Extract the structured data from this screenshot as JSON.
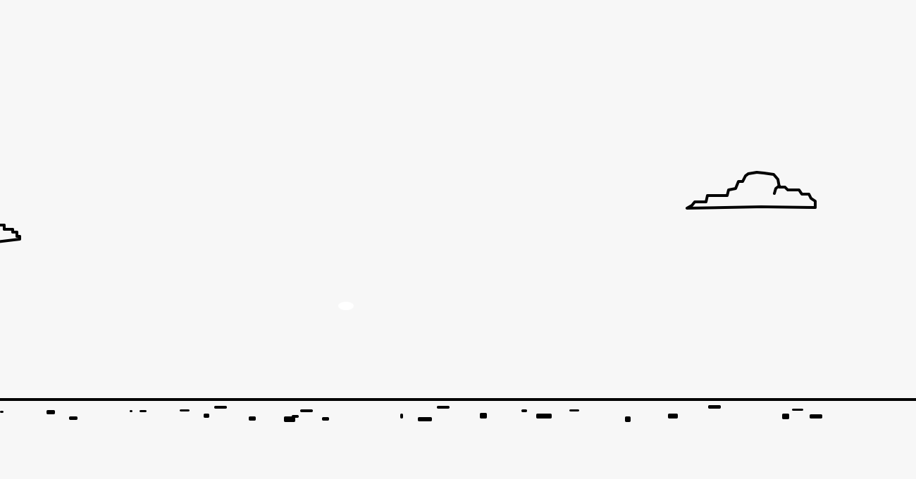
{
  "game": {
    "background_color": "#f7f7f7",
    "ink_color": "#000000",
    "elements": {
      "clouds": [
        "cloud-icon",
        "cloud-icon"
      ],
      "ground": "horizon-line",
      "ground_texture": "pebble-marks",
      "sparkle": "light-glint"
    }
  }
}
